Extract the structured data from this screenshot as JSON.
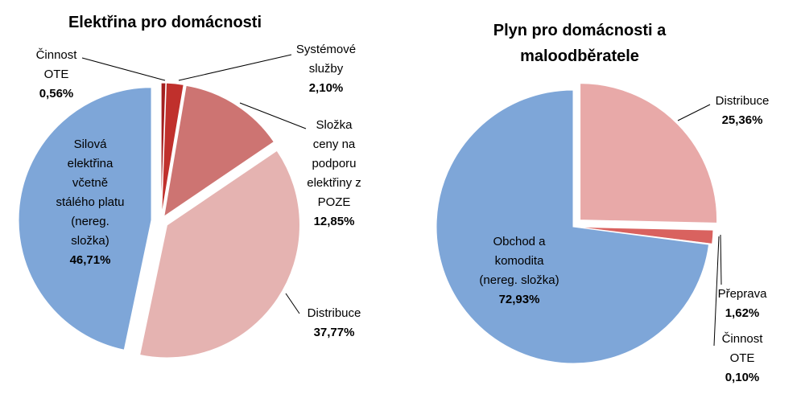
{
  "chart_data": [
    {
      "type": "pie",
      "title": "Elektřina pro domácnosti",
      "categories": [
        "Činnost OTE",
        "Systémové služby",
        "Složka ceny na podporu elektřiny z POZE",
        "Distribuce",
        "Silová elektřina včetně stálého platu (nereg. složka)"
      ],
      "values": [
        0.56,
        2.1,
        12.85,
        37.77,
        46.71
      ],
      "value_labels": [
        "0,56%",
        "2,10%",
        "12,85%",
        "37,77%",
        "46,71%"
      ],
      "colors": [
        "#a31f1f",
        "#c0302c",
        "#cd7472",
        "#e5b3b1",
        "#7ea6d8"
      ]
    },
    {
      "type": "pie",
      "title": "Plyn pro domácnosti a maloodběratele",
      "categories": [
        "Distribuce",
        "Přeprava",
        "Činnost OTE",
        "Obchod a komodita (nereg. složka)"
      ],
      "values": [
        25.36,
        1.62,
        0.1,
        72.93
      ],
      "value_labels": [
        "25,36%",
        "1,62%",
        "0,10%",
        "72,93%"
      ],
      "colors": [
        "#e8a9a8",
        "#d9625f",
        "#a31f1f",
        "#7ea6d8"
      ]
    }
  ]
}
